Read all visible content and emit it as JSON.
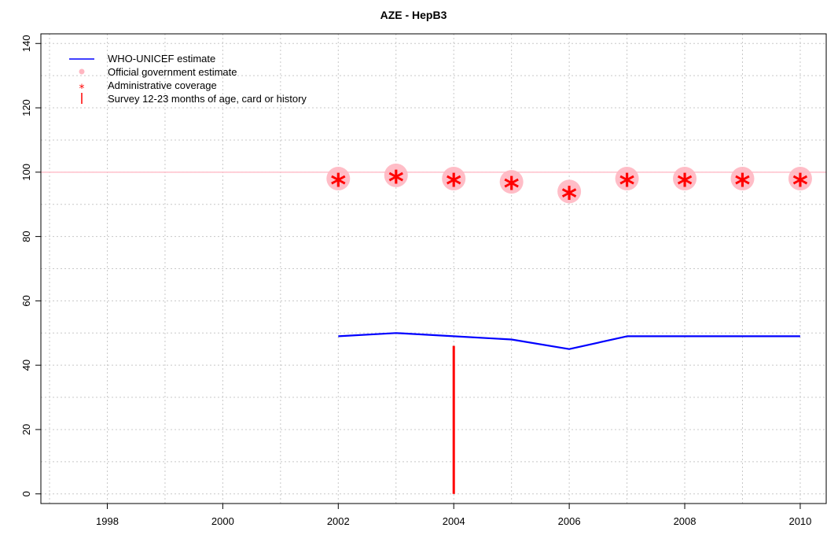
{
  "chart_data": {
    "type": "line",
    "title": "AZE  -  HepB3",
    "xlabel": "",
    "ylabel": "",
    "xlim": [
      1996.85,
      2010.45
    ],
    "ylim": [
      -3,
      143
    ],
    "x_ticks": [
      1998,
      2000,
      2002,
      2004,
      2006,
      2008,
      2010
    ],
    "y_ticks": [
      0,
      20,
      40,
      60,
      80,
      100,
      120,
      140
    ],
    "x_grid": [
      1997,
      1998,
      1999,
      2000,
      2001,
      2002,
      2003,
      2004,
      2005,
      2006,
      2007,
      2008,
      2009,
      2010
    ],
    "y_grid": [
      0,
      10,
      20,
      30,
      40,
      50,
      60,
      70,
      80,
      90,
      100,
      110,
      120,
      130,
      140
    ],
    "grid": true,
    "reference_line": {
      "y": 100,
      "color": "#ffc0cb"
    },
    "legend": {
      "placement": "top-left",
      "entries": [
        {
          "label": "WHO-UNICEF estimate",
          "symbol": "line",
          "color": "#0000ff"
        },
        {
          "label": "Official government estimate",
          "symbol": "dot",
          "color": "#ffb6c1"
        },
        {
          "label": "Administrative coverage",
          "symbol": "asterisk",
          "color": "#ff0000"
        },
        {
          "label": "Survey 12-23 months of age, card or history",
          "symbol": "bar",
          "color": "#ff0000"
        }
      ]
    },
    "series": [
      {
        "name": "WHO-UNICEF estimate",
        "kind": "line",
        "color": "#0000ff",
        "x": [
          2002,
          2003,
          2004,
          2005,
          2006,
          2007,
          2008,
          2009,
          2010
        ],
        "y": [
          49,
          50,
          49,
          48,
          45,
          49,
          49,
          49,
          49
        ]
      },
      {
        "name": "Official government estimate",
        "kind": "dot",
        "color": "#ffb6c1",
        "x": [
          2002,
          2003,
          2004,
          2005,
          2006,
          2007,
          2008,
          2009,
          2010
        ],
        "y": [
          98,
          99,
          98,
          97,
          94,
          98,
          98,
          98,
          98
        ]
      },
      {
        "name": "Administrative coverage",
        "kind": "asterisk",
        "color": "#ff0000",
        "x": [
          2002,
          2003,
          2004,
          2005,
          2006,
          2007,
          2008,
          2009,
          2010
        ],
        "y": [
          97,
          98,
          97,
          96,
          93,
          97,
          97,
          97,
          97
        ]
      },
      {
        "name": "Survey 12-23 months of age, card or history",
        "kind": "bar",
        "color": "#ff0000",
        "x": [
          2004
        ],
        "y": [
          46
        ]
      }
    ]
  }
}
